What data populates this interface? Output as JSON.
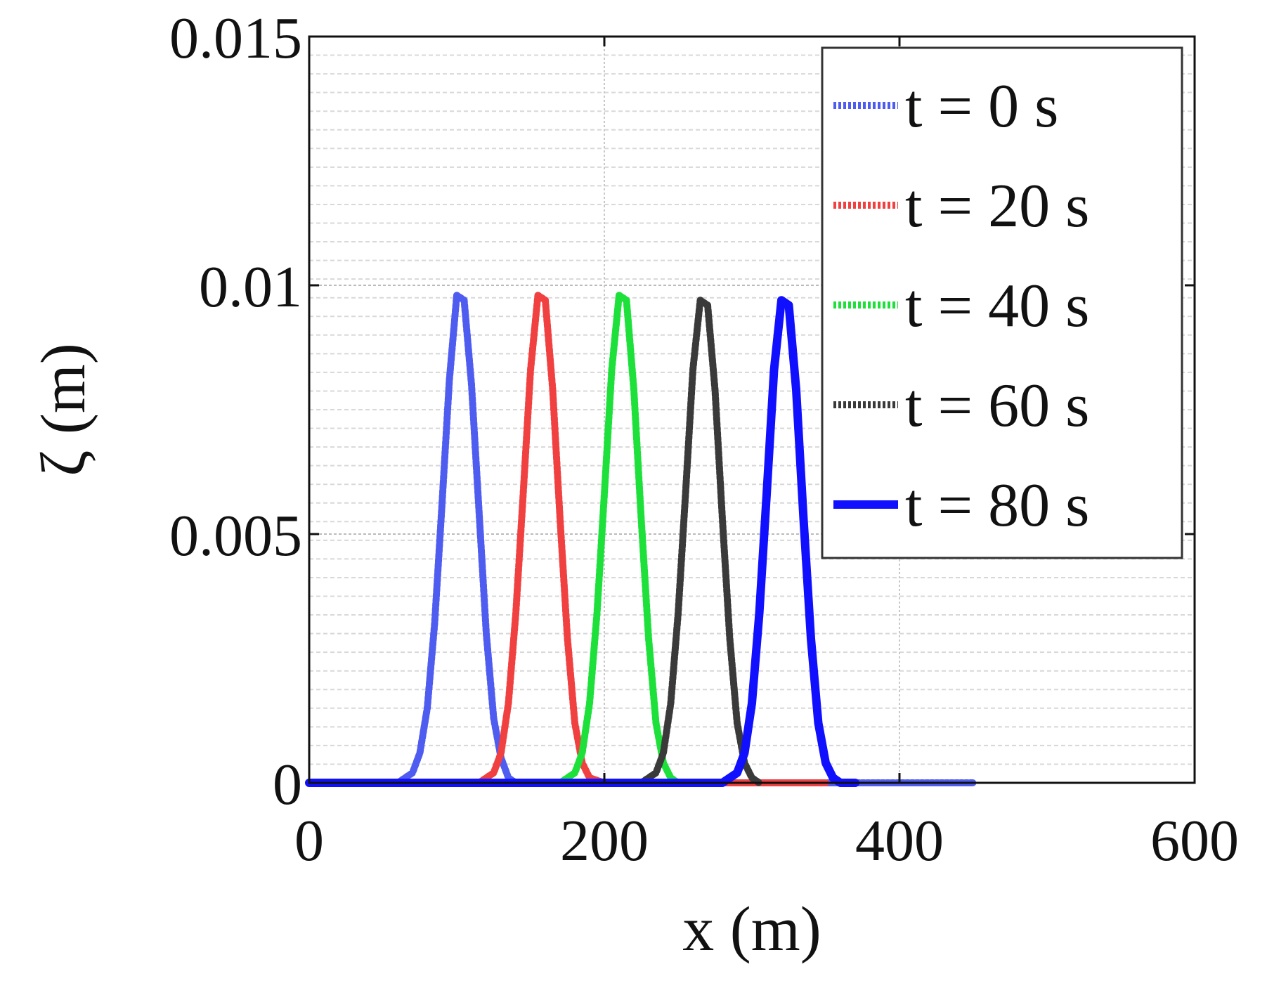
{
  "chart_data": {
    "type": "line",
    "xlabel": "x (m)",
    "ylabel": "ζ (m)",
    "xlim": [
      0,
      600
    ],
    "ylim": [
      0,
      0.015
    ],
    "x_ticks": [
      0,
      200,
      400,
      600
    ],
    "y_ticks": [
      0,
      0.005,
      0.01,
      0.015
    ],
    "x_tick_labels": [
      "0",
      "200",
      "400",
      "600"
    ],
    "y_tick_labels": [
      "0",
      "0.005",
      "0.01",
      "0.015"
    ],
    "grid": true,
    "legend_position": "top-right",
    "series": [
      {
        "name": "t = 0 s",
        "color": "#4f5cf0",
        "style": "dotted",
        "x": [
          60,
          70,
          75,
          80,
          85,
          90,
          95,
          100,
          105,
          110,
          115,
          120,
          125,
          130,
          135,
          140,
          150,
          170,
          200,
          250,
          300,
          350,
          400,
          450
        ],
        "y": [
          0,
          0.0002,
          0.0006,
          0.0015,
          0.0032,
          0.0056,
          0.0081,
          0.0098,
          0.0097,
          0.008,
          0.0055,
          0.003,
          0.0013,
          0.0005,
          0.0001,
          0,
          0,
          0,
          0,
          0,
          0,
          0,
          0,
          0
        ]
      },
      {
        "name": "t = 20 s",
        "color": "#f04040",
        "style": "dotted",
        "x": [
          115,
          125,
          130,
          135,
          140,
          145,
          150,
          155,
          160,
          165,
          170,
          175,
          180,
          185,
          190,
          200,
          260,
          300,
          340,
          350
        ],
        "y": [
          0,
          0.0002,
          0.0006,
          0.0016,
          0.0034,
          0.0058,
          0.0083,
          0.0098,
          0.0097,
          0.0079,
          0.0053,
          0.0029,
          0.0012,
          0.0004,
          0.0001,
          0,
          0,
          0,
          0,
          0
        ]
      },
      {
        "name": "t = 40 s",
        "color": "#1ee03a",
        "style": "dotted",
        "x": [
          170,
          180,
          185,
          190,
          195,
          200,
          205,
          210,
          215,
          220,
          225,
          230,
          235,
          240,
          245,
          250
        ],
        "y": [
          0,
          0.0002,
          0.0006,
          0.0016,
          0.0034,
          0.0058,
          0.0083,
          0.0098,
          0.0097,
          0.0079,
          0.0053,
          0.0029,
          0.0012,
          0.0004,
          0.0001,
          0
        ]
      },
      {
        "name": "t = 60 s",
        "color": "#3a3a3a",
        "style": "dotted",
        "x": [
          225,
          235,
          240,
          245,
          250,
          255,
          260,
          265,
          270,
          275,
          280,
          285,
          290,
          295,
          300,
          305
        ],
        "y": [
          0,
          0.0002,
          0.0006,
          0.0016,
          0.0034,
          0.0058,
          0.0083,
          0.0097,
          0.0096,
          0.0079,
          0.0053,
          0.0029,
          0.0012,
          0.0004,
          0.0001,
          0
        ]
      },
      {
        "name": "t = 80 s",
        "color": "#1010ff",
        "style": "solid",
        "x": [
          0,
          100,
          200,
          280,
          290,
          295,
          300,
          305,
          310,
          315,
          320,
          325,
          330,
          335,
          340,
          345,
          350,
          355,
          360,
          370
        ],
        "y": [
          0,
          0,
          0,
          0,
          0.0002,
          0.0006,
          0.0016,
          0.0034,
          0.0058,
          0.0083,
          0.0097,
          0.0096,
          0.0079,
          0.0053,
          0.0029,
          0.0012,
          0.0004,
          0.0001,
          0,
          0
        ]
      }
    ]
  }
}
